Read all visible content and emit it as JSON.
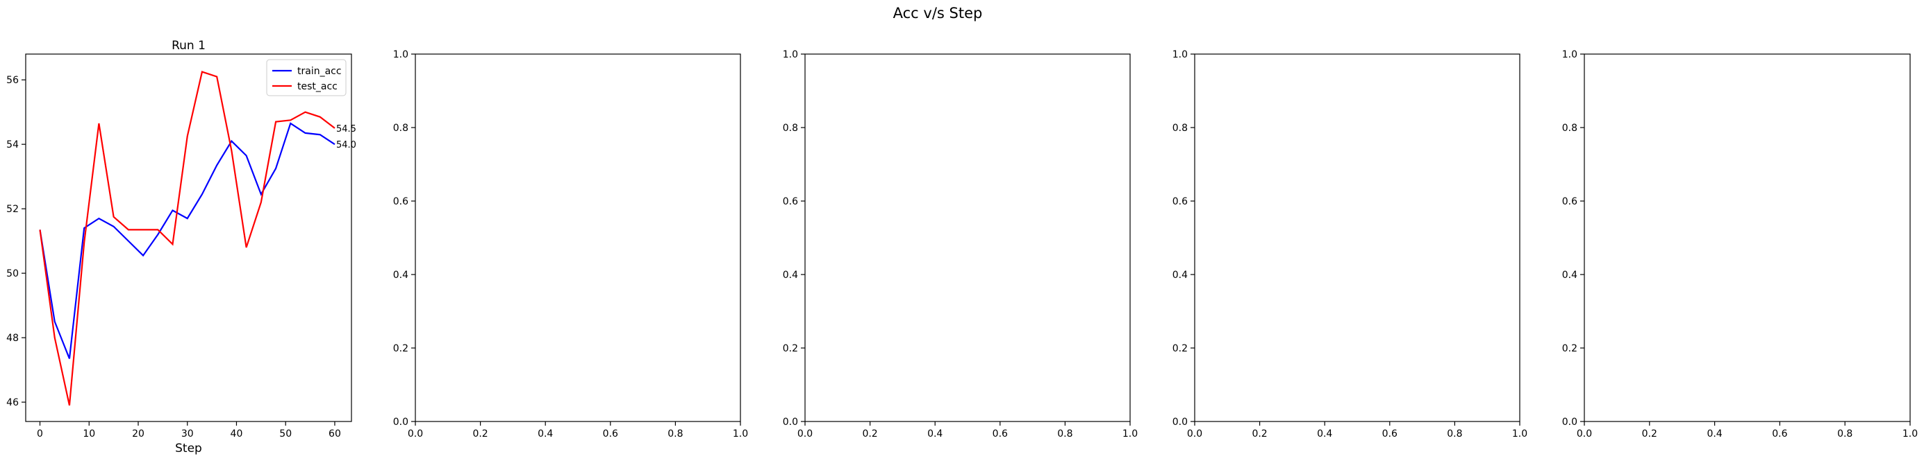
{
  "figure": {
    "suptitle": "Acc v/s Step"
  },
  "chart_data": [
    {
      "type": "line",
      "title": "Run 1",
      "xlabel": "Step",
      "ylabel": "",
      "xlim": [
        -2.9,
        63.4
      ],
      "ylim": [
        45.4,
        56.8
      ],
      "xticks": [
        0,
        10,
        20,
        30,
        40,
        50,
        60
      ],
      "yticks": [
        46,
        48,
        50,
        52,
        54,
        56
      ],
      "legend": "top-right",
      "series": [
        {
          "name": "train_acc",
          "color": "#0000ff",
          "x": [
            0,
            3,
            6,
            9,
            12,
            15,
            18,
            21,
            24,
            27,
            30,
            33,
            36,
            39,
            42,
            45,
            48,
            51,
            54,
            57,
            60
          ],
          "y": [
            51.35,
            48.5,
            47.35,
            51.4,
            51.7,
            51.45,
            51.0,
            50.55,
            51.2,
            51.95,
            51.7,
            52.45,
            53.35,
            54.1,
            53.65,
            52.45,
            53.25,
            54.65,
            54.35,
            54.3,
            54.0
          ],
          "end_label": "54.0"
        },
        {
          "name": "test_acc",
          "color": "#ff0000",
          "x": [
            0,
            3,
            6,
            9,
            12,
            15,
            18,
            21,
            24,
            27,
            30,
            33,
            36,
            39,
            42,
            45,
            48,
            51,
            54,
            57,
            60
          ],
          "y": [
            51.35,
            48.0,
            45.9,
            50.95,
            54.65,
            51.75,
            51.35,
            51.35,
            51.35,
            50.9,
            54.25,
            56.25,
            56.1,
            53.8,
            50.8,
            52.2,
            54.7,
            54.75,
            55.0,
            54.85,
            54.5
          ],
          "end_label": "54.5"
        }
      ]
    },
    {
      "type": "line",
      "title": "",
      "xlabel": "",
      "ylabel": "",
      "xlim": [
        0,
        1
      ],
      "ylim": [
        0,
        1
      ],
      "xticks": [
        0.0,
        0.2,
        0.4,
        0.6,
        0.8,
        1.0
      ],
      "yticks": [
        0.0,
        0.2,
        0.4,
        0.6,
        0.8,
        1.0
      ],
      "series": []
    },
    {
      "type": "line",
      "title": "",
      "xlabel": "",
      "ylabel": "",
      "xlim": [
        0,
        1
      ],
      "ylim": [
        0,
        1
      ],
      "xticks": [
        0.0,
        0.2,
        0.4,
        0.6,
        0.8,
        1.0
      ],
      "yticks": [
        0.0,
        0.2,
        0.4,
        0.6,
        0.8,
        1.0
      ],
      "series": []
    },
    {
      "type": "line",
      "title": "",
      "xlabel": "",
      "ylabel": "",
      "xlim": [
        0,
        1
      ],
      "ylim": [
        0,
        1
      ],
      "xticks": [
        0.0,
        0.2,
        0.4,
        0.6,
        0.8,
        1.0
      ],
      "yticks": [
        0.0,
        0.2,
        0.4,
        0.6,
        0.8,
        1.0
      ],
      "series": []
    },
    {
      "type": "line",
      "title": "",
      "xlabel": "",
      "ylabel": "",
      "xlim": [
        0,
        1
      ],
      "ylim": [
        0,
        1
      ],
      "xticks": [
        0.0,
        0.2,
        0.4,
        0.6,
        0.8,
        1.0
      ],
      "yticks": [
        0.0,
        0.2,
        0.4,
        0.6,
        0.8,
        1.0
      ],
      "series": []
    }
  ]
}
